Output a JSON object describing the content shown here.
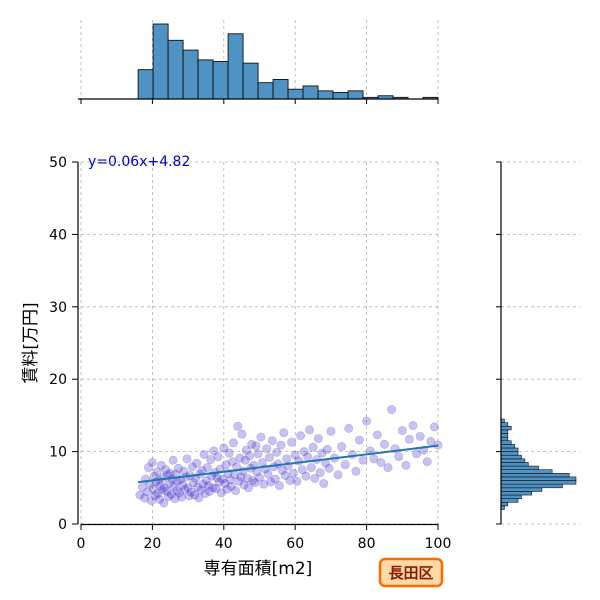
{
  "chart_data": {
    "type": "scatter",
    "equation": "y=0.06x+4.82",
    "xlabel": "専有面積[m2]",
    "ylabel": "賃料[万円]",
    "district": "長田区",
    "xlim": [
      0,
      100
    ],
    "ylim": [
      0,
      50
    ],
    "xticks": [
      0,
      20,
      40,
      60,
      80,
      100
    ],
    "yticks": [
      0,
      10,
      20,
      30,
      40,
      50
    ],
    "grid": true,
    "regression": {
      "slope": 0.06,
      "intercept": 4.82,
      "x_range": [
        16,
        100
      ]
    },
    "colors": {
      "points": "#3a24c8",
      "line": "#1f77b4",
      "hist_fill": "#4f93c4",
      "badge_fill": "#ffd9a8",
      "badge_border": "#ff6a00"
    },
    "x_histogram": {
      "bin_edges": [
        16,
        20.2,
        24.4,
        28.6,
        32.8,
        37,
        41.2,
        45.4,
        49.6,
        53.8,
        58,
        62.2,
        66.4,
        70.6,
        74.8,
        79,
        83.2,
        87.4,
        91.6,
        95.8,
        100
      ],
      "counts": [
        18,
        46,
        36,
        30,
        24,
        23,
        40,
        22,
        10,
        12,
        6,
        8,
        5,
        4,
        5,
        1,
        2,
        1,
        0,
        1
      ]
    },
    "y_histogram": {
      "bin_edges": [
        2,
        2.5,
        3,
        3.5,
        4,
        4.5,
        5,
        5.5,
        6,
        6.5,
        7,
        7.5,
        8,
        8.5,
        9,
        9.5,
        10,
        10.5,
        11,
        11.5,
        12,
        12.5,
        13,
        13.5,
        14,
        14.5
      ],
      "counts": [
        1,
        2,
        5,
        6,
        9,
        12,
        18,
        22,
        22,
        20,
        15,
        11,
        8,
        7,
        6,
        5,
        5,
        4,
        3,
        2,
        2,
        2,
        3,
        2,
        1
      ]
    },
    "points": [
      [
        16.5,
        4.0
      ],
      [
        17.2,
        5.1
      ],
      [
        17.8,
        3.6
      ],
      [
        18.1,
        6.2
      ],
      [
        18.6,
        4.4
      ],
      [
        18.9,
        7.8
      ],
      [
        19.3,
        5.5
      ],
      [
        19.7,
        3.2
      ],
      [
        20.0,
        8.5
      ],
      [
        20.2,
        4.9
      ],
      [
        20.5,
        6.6
      ],
      [
        20.8,
        3.9
      ],
      [
        21.0,
        5.8
      ],
      [
        21.3,
        7.2
      ],
      [
        21.5,
        4.2
      ],
      [
        21.8,
        6.0
      ],
      [
        22.0,
        3.4
      ],
      [
        22.2,
        5.3
      ],
      [
        22.5,
        8.1
      ],
      [
        22.7,
        4.7
      ],
      [
        23.0,
        6.4
      ],
      [
        23.2,
        2.9
      ],
      [
        23.4,
        5.0
      ],
      [
        23.7,
        7.5
      ],
      [
        24.0,
        4.5
      ],
      [
        24.2,
        6.8
      ],
      [
        24.5,
        3.8
      ],
      [
        24.8,
        5.6
      ],
      [
        25.0,
        7.0
      ],
      [
        25.3,
        4.1
      ],
      [
        25.5,
        6.2
      ],
      [
        25.8,
        8.8
      ],
      [
        26.0,
        5.2
      ],
      [
        26.3,
        3.5
      ],
      [
        26.5,
        6.9
      ],
      [
        26.8,
        4.6
      ],
      [
        27.0,
        5.9
      ],
      [
        27.3,
        7.7
      ],
      [
        27.6,
        4.3
      ],
      [
        27.9,
        6.1
      ],
      [
        28.2,
        3.7
      ],
      [
        28.5,
        5.4
      ],
      [
        28.8,
        7.3
      ],
      [
        29.1,
        4.8
      ],
      [
        29.4,
        6.5
      ],
      [
        29.7,
        9.0
      ],
      [
        30.0,
        5.0
      ],
      [
        30.3,
        3.9
      ],
      [
        30.6,
        6.7
      ],
      [
        30.9,
        4.4
      ],
      [
        31.2,
        7.9
      ],
      [
        31.5,
        5.7
      ],
      [
        31.8,
        4.0
      ],
      [
        32.1,
        6.3
      ],
      [
        32.4,
        8.4
      ],
      [
        32.7,
        5.1
      ],
      [
        33.0,
        3.6
      ],
      [
        33.3,
        6.9
      ],
      [
        33.6,
        4.7
      ],
      [
        33.9,
        7.4
      ],
      [
        34.2,
        5.5
      ],
      [
        34.5,
        9.6
      ],
      [
        34.8,
        4.2
      ],
      [
        35.1,
        6.0
      ],
      [
        35.4,
        7.8
      ],
      [
        35.7,
        5.3
      ],
      [
        36.0,
        4.5
      ],
      [
        36.3,
        8.9
      ],
      [
        36.6,
        6.6
      ],
      [
        36.9,
        5.0
      ],
      [
        37.2,
        10.1
      ],
      [
        37.5,
        7.1
      ],
      [
        37.8,
        4.9
      ],
      [
        38.1,
        6.4
      ],
      [
        38.4,
        9.3
      ],
      [
        38.7,
        5.8
      ],
      [
        39.0,
        7.6
      ],
      [
        39.3,
        4.3
      ],
      [
        39.6,
        6.2
      ],
      [
        40.0,
        10.5
      ],
      [
        40.3,
        5.6
      ],
      [
        40.6,
        8.2
      ],
      [
        40.9,
        4.8
      ],
      [
        41.2,
        7.0
      ],
      [
        41.5,
        9.8
      ],
      [
        41.8,
        6.1
      ],
      [
        42.1,
        5.2
      ],
      [
        42.4,
        8.6
      ],
      [
        42.7,
        11.2
      ],
      [
        43.0,
        6.8
      ],
      [
        43.3,
        4.6
      ],
      [
        43.6,
        7.9
      ],
      [
        43.9,
        13.5
      ],
      [
        44.2,
        5.9
      ],
      [
        44.5,
        9.1
      ],
      [
        44.8,
        6.5
      ],
      [
        45.1,
        12.4
      ],
      [
        45.4,
        7.3
      ],
      [
        45.7,
        5.4
      ],
      [
        46.0,
        8.8
      ],
      [
        46.3,
        10.2
      ],
      [
        46.6,
        6.3
      ],
      [
        46.9,
        5.0
      ],
      [
        47.2,
        9.4
      ],
      [
        47.5,
        7.7
      ],
      [
        47.8,
        11.0
      ],
      [
        48.1,
        6.0
      ],
      [
        48.4,
        8.1
      ],
      [
        48.7,
        5.7
      ],
      [
        49.0,
        10.8
      ],
      [
        49.3,
        7.2
      ],
      [
        49.6,
        9.7
      ],
      [
        50.0,
        6.4
      ],
      [
        50.4,
        12.0
      ],
      [
        50.8,
        8.5
      ],
      [
        51.2,
        5.5
      ],
      [
        51.6,
        7.6
      ],
      [
        52.0,
        10.4
      ],
      [
        52.4,
        6.9
      ],
      [
        52.8,
        9.2
      ],
      [
        53.2,
        5.8
      ],
      [
        53.6,
        11.5
      ],
      [
        54.0,
        7.9
      ],
      [
        54.4,
        6.2
      ],
      [
        54.8,
        9.9
      ],
      [
        55.2,
        8.3
      ],
      [
        55.6,
        5.3
      ],
      [
        56.0,
        10.9
      ],
      [
        56.4,
        7.4
      ],
      [
        56.8,
        12.6
      ],
      [
        57.2,
        6.7
      ],
      [
        57.6,
        9.0
      ],
      [
        58.0,
        8.0
      ],
      [
        58.5,
        6.0
      ],
      [
        59.0,
        11.3
      ],
      [
        59.5,
        7.0
      ],
      [
        60.0,
        9.5
      ],
      [
        60.5,
        5.9
      ],
      [
        61.0,
        8.7
      ],
      [
        61.5,
        12.2
      ],
      [
        62.0,
        7.5
      ],
      [
        62.5,
        10.0
      ],
      [
        63.0,
        6.6
      ],
      [
        63.5,
        9.3
      ],
      [
        64.0,
        13.0
      ],
      [
        64.5,
        7.8
      ],
      [
        65.0,
        10.6
      ],
      [
        65.5,
        6.3
      ],
      [
        66.0,
        8.9
      ],
      [
        66.5,
        11.8
      ],
      [
        67.0,
        7.1
      ],
      [
        67.5,
        9.8
      ],
      [
        68.0,
        5.6
      ],
      [
        68.5,
        8.4
      ],
      [
        69.0,
        10.3
      ],
      [
        69.5,
        7.7
      ],
      [
        70.0,
        12.8
      ],
      [
        71.0,
        9.1
      ],
      [
        72.0,
        6.8
      ],
      [
        73.0,
        10.7
      ],
      [
        74.0,
        8.2
      ],
      [
        75.0,
        13.2
      ],
      [
        76.0,
        9.6
      ],
      [
        77.0,
        7.3
      ],
      [
        78.0,
        11.6
      ],
      [
        79.0,
        8.8
      ],
      [
        80.0,
        14.2
      ],
      [
        81.0,
        10.1
      ],
      [
        82.0,
        9.0
      ],
      [
        83.0,
        12.3
      ],
      [
        84.0,
        8.5
      ],
      [
        85.0,
        11.0
      ],
      [
        86.0,
        7.8
      ],
      [
        87.0,
        15.8
      ],
      [
        88.0,
        10.4
      ],
      [
        89.0,
        9.3
      ],
      [
        90.0,
        12.9
      ],
      [
        91.0,
        8.1
      ],
      [
        92.0,
        11.7
      ],
      [
        93.0,
        13.6
      ],
      [
        94.0,
        9.7
      ],
      [
        95.0,
        12.1
      ],
      [
        96.0,
        10.2
      ],
      [
        97.0,
        8.6
      ],
      [
        98.0,
        11.4
      ],
      [
        99.0,
        13.4
      ],
      [
        100.0,
        10.9
      ]
    ]
  }
}
